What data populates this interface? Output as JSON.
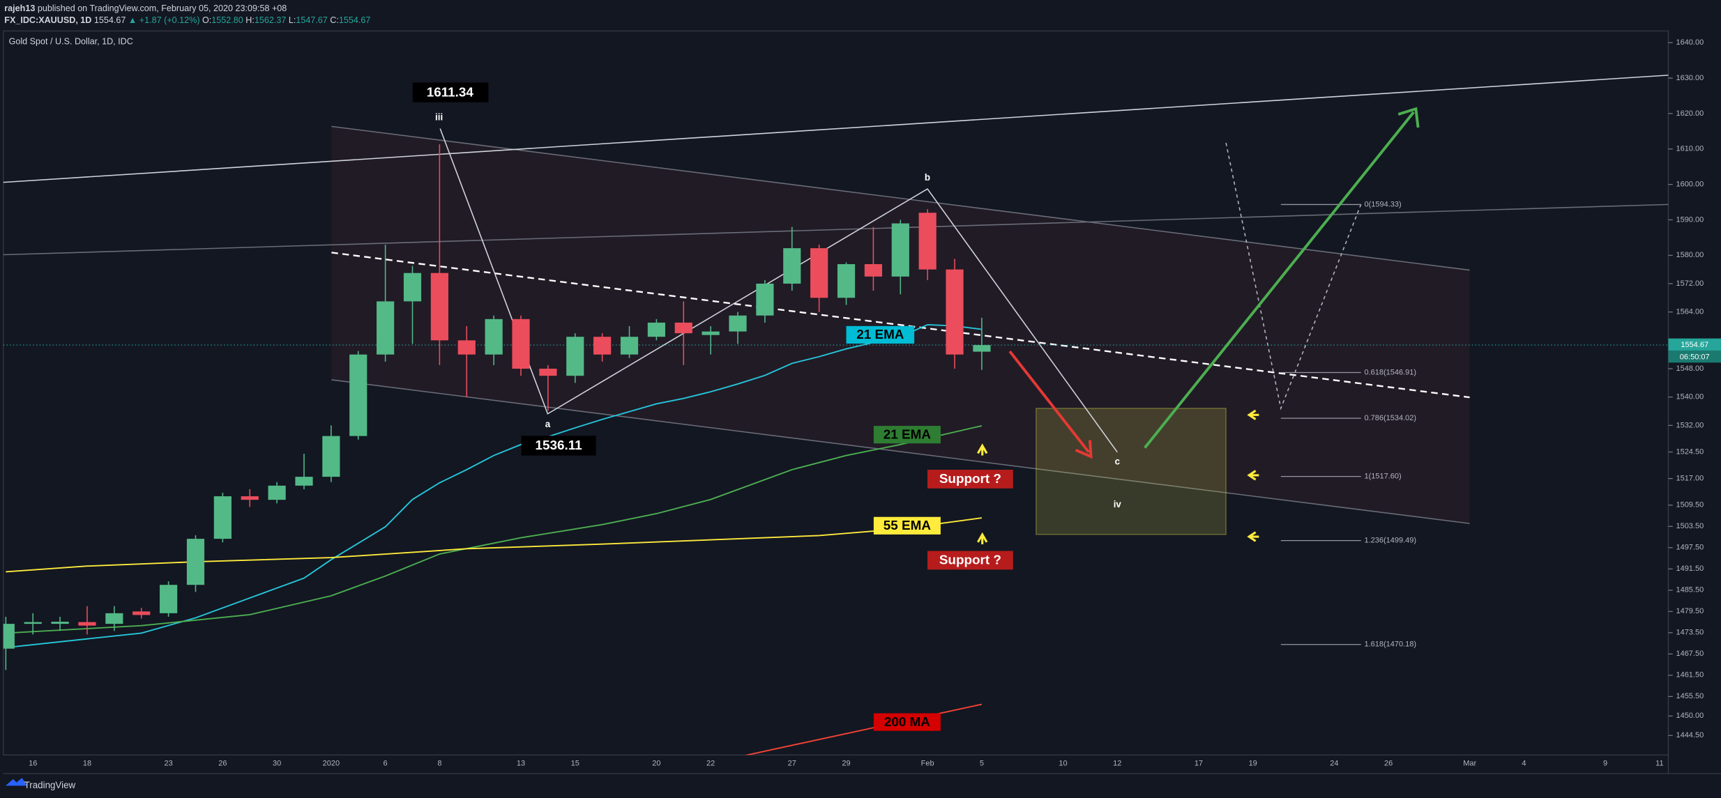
{
  "header": {
    "publisher": "rajeh13",
    "published": "published on TradingView.com, February 05, 2020 23:09:58 +08",
    "symbol": "FX_IDC:XAUUSD, 1D",
    "last": "1554.67",
    "change": "▲ +1.87 (+0.12%)",
    "ohlc": [
      {
        "key": "O:",
        "value": "1552.80"
      },
      {
        "key": "H:",
        "value": "1562.37"
      },
      {
        "key": "L:",
        "value": "1547.67"
      },
      {
        "key": "C:",
        "value": "1554.67"
      }
    ]
  },
  "chart_data": {
    "type": "candlestick",
    "title": "Gold Spot / U.S. Dollar, 1D, IDC",
    "up_color": "#53b987",
    "down_color": "#eb4d5c",
    "categories": [
      null,
      "16",
      null,
      "18",
      null,
      null,
      "23",
      null,
      "26",
      null,
      "30",
      null,
      "2020",
      null,
      "6",
      null,
      "8",
      null,
      null,
      "13",
      null,
      "15",
      null,
      null,
      "20",
      null,
      "22",
      null,
      null,
      "27",
      null,
      "29",
      null,
      null,
      "Feb",
      null,
      "5",
      null,
      null,
      "10",
      null,
      "12",
      null,
      null,
      "17",
      null,
      "19",
      null,
      null,
      "24",
      null,
      "26",
      null,
      null,
      "Mar",
      null,
      "4",
      null,
      null,
      "9",
      null,
      "11"
    ],
    "open": [
      1469,
      1476,
      1476,
      1476.5,
      1476,
      1479.5,
      1479,
      1487,
      1500,
      1512,
      1511,
      1515,
      1517.5,
      1529,
      1552,
      1567,
      1575,
      1556,
      1552,
      1562,
      1548,
      1546,
      1557,
      1552,
      1557,
      1561,
      1557.5,
      1558.5,
      1563,
      1572,
      1582,
      1568,
      1577.5,
      1574,
      1592,
      1576,
      1552.8,
      null,
      null,
      null,
      null,
      null,
      null,
      null,
      null,
      null,
      null,
      null,
      null,
      null,
      null,
      null,
      null,
      null,
      null,
      null,
      null,
      null,
      null,
      null,
      null,
      null
    ],
    "high": [
      1478,
      1479,
      1478,
      1481,
      1481,
      1480.5,
      1488,
      1501,
      1513,
      1514,
      1516,
      1524,
      1532,
      1553,
      1583,
      1577,
      1611.34,
      1560,
      1563,
      1563,
      1549,
      1558,
      1558,
      1560,
      1562,
      1567,
      1560,
      1564,
      1573,
      1588,
      1583,
      1578,
      1588,
      1590,
      1593,
      1579,
      1562.37,
      null,
      null,
      null,
      null,
      null,
      null,
      null,
      null,
      null,
      null,
      null,
      null,
      null,
      null,
      null,
      null,
      null,
      null,
      null,
      null,
      null,
      null,
      null,
      null,
      null
    ],
    "low": [
      1463,
      1473,
      1474,
      1473,
      1474,
      1477.5,
      1478,
      1485,
      1499,
      1509,
      1510,
      1514,
      1516,
      1528,
      1550,
      1555,
      1549,
      1540,
      1549,
      1546,
      1536.11,
      1544,
      1550,
      1551,
      1556,
      1549,
      1552,
      1555,
      1561,
      1570,
      1564,
      1566,
      1570,
      1569,
      1573,
      1548,
      1547.67,
      null,
      null,
      null,
      null,
      null,
      null,
      null,
      null,
      null,
      null,
      null,
      null,
      null,
      null,
      null,
      null,
      null,
      null,
      null,
      null,
      null,
      null,
      null,
      null,
      null
    ],
    "close": [
      1476,
      1476.5,
      1476.6,
      1475.5,
      1479,
      1478.5,
      1487,
      1500,
      1512,
      1511,
      1515,
      1517.5,
      1529,
      1552,
      1567,
      1575,
      1556,
      1552,
      1562,
      1548,
      1546,
      1557,
      1552,
      1557,
      1561,
      1558,
      1558.5,
      1563,
      1572,
      1582,
      1568,
      1577.5,
      1574,
      1589,
      1576,
      1552,
      1554.67,
      null,
      null,
      null,
      null,
      null,
      null,
      null,
      null,
      null,
      null,
      null,
      null,
      null,
      null,
      null,
      null,
      null,
      null,
      null,
      null,
      null,
      null,
      null,
      null,
      null
    ],
    "ylim": [
      1439,
      1643.3
    ],
    "yticks": [
      {
        "value": 1640,
        "label": "1640.00"
      },
      {
        "value": 1630,
        "label": "1630.00"
      },
      {
        "value": 1620,
        "label": "1620.00"
      },
      {
        "value": 1610,
        "label": "1610.00"
      },
      {
        "value": 1600,
        "label": "1600.00"
      },
      {
        "value": 1590,
        "label": "1590.00"
      },
      {
        "value": 1580,
        "label": "1580.00"
      },
      {
        "value": 1572,
        "label": "1572.00"
      },
      {
        "value": 1564,
        "label": "1564.00"
      },
      {
        "value": 1548,
        "label": "1548.00"
      },
      {
        "value": 1540,
        "label": "1540.00"
      },
      {
        "value": 1532,
        "label": "1532.00"
      },
      {
        "value": 1524.5,
        "label": "1524.50"
      },
      {
        "value": 1517,
        "label": "1517.00"
      },
      {
        "value": 1509.5,
        "label": "1509.50"
      },
      {
        "value": 1503.5,
        "label": "1503.50"
      },
      {
        "value": 1497.5,
        "label": "1497.50"
      },
      {
        "value": 1491.5,
        "label": "1491.50"
      },
      {
        "value": 1485.5,
        "label": "1485.50"
      },
      {
        "value": 1479.5,
        "label": "1479.50"
      },
      {
        "value": 1473.5,
        "label": "1473.50"
      },
      {
        "value": 1467.5,
        "label": "1467.50"
      },
      {
        "value": 1461.5,
        "label": "1461.50"
      },
      {
        "value": 1455.5,
        "label": "1455.50"
      },
      {
        "value": 1450,
        "label": "1450.00"
      },
      {
        "value": 1444.5,
        "label": "1444.50"
      }
    ],
    "grid": false,
    "last_price": 1554.67,
    "countdown": "06:50:07",
    "overlays": [
      {
        "name": "21 EMA",
        "color": "#26c6da",
        "x": [
          0,
          5,
          7,
          9,
          11,
          12,
          14,
          15,
          16,
          17,
          18,
          19,
          20,
          21,
          22,
          23,
          24,
          25,
          26,
          27,
          28,
          29,
          30,
          31,
          32,
          33,
          34,
          35,
          36
        ],
        "values": [
          1469.3,
          1473.4,
          1477.7,
          1483.3,
          1488.9,
          1494.1,
          1503.4,
          1511.1,
          1515.8,
          1519.5,
          1523.5,
          1526.6,
          1528.8,
          1531.3,
          1533.7,
          1535.9,
          1538.1,
          1539.6,
          1541.5,
          1543.7,
          1546.1,
          1549.5,
          1551.4,
          1553.6,
          1555.4,
          1557,
          1560.4,
          1560.1,
          1559.1
        ]
      },
      {
        "name": "21 EMA",
        "color": "#4caf50",
        "x": [
          0,
          5,
          9,
          12,
          14,
          16,
          19,
          22,
          24,
          26,
          29,
          31,
          33,
          36
        ],
        "values": [
          1473.4,
          1475.5,
          1478.6,
          1483.9,
          1489.5,
          1495.7,
          1500.3,
          1504,
          1507.1,
          1511.1,
          1519.5,
          1523.5,
          1526.6,
          1531.9
        ]
      },
      {
        "name": "55 EMA",
        "color": "#ffeb3b",
        "x": [
          0,
          3,
          7,
          12,
          17,
          22,
          26,
          30,
          33,
          36
        ],
        "values": [
          1490.7,
          1492.3,
          1493.5,
          1494.7,
          1497.2,
          1498.5,
          1499.7,
          1500.9,
          1502.8,
          1505.9
        ]
      },
      {
        "name": "200 MA",
        "color": "#f44336",
        "x": [
          27,
          36
        ],
        "values": [
          1438.4,
          1453.3
        ]
      }
    ],
    "fib_levels": [
      {
        "label": "0(1594.33)",
        "price": 1594.33
      },
      {
        "label": "0.618(1546.91)",
        "price": 1546.91
      },
      {
        "label": "0.786(1534.02)",
        "price": 1534.02
      },
      {
        "label": "1(1517.60)",
        "price": 1517.6
      },
      {
        "label": "1.236(1499.49)",
        "price": 1499.49
      },
      {
        "label": "1.618(1470.18)",
        "price": 1470.18
      }
    ],
    "annotations": {
      "waves": [
        "iii",
        "a",
        "b",
        "c",
        "iv"
      ],
      "price_labels": [
        1611.34,
        1536.11
      ],
      "support": [
        "Support ?",
        "Support ?"
      ]
    }
  },
  "footer": {
    "brand": "TradingView"
  }
}
